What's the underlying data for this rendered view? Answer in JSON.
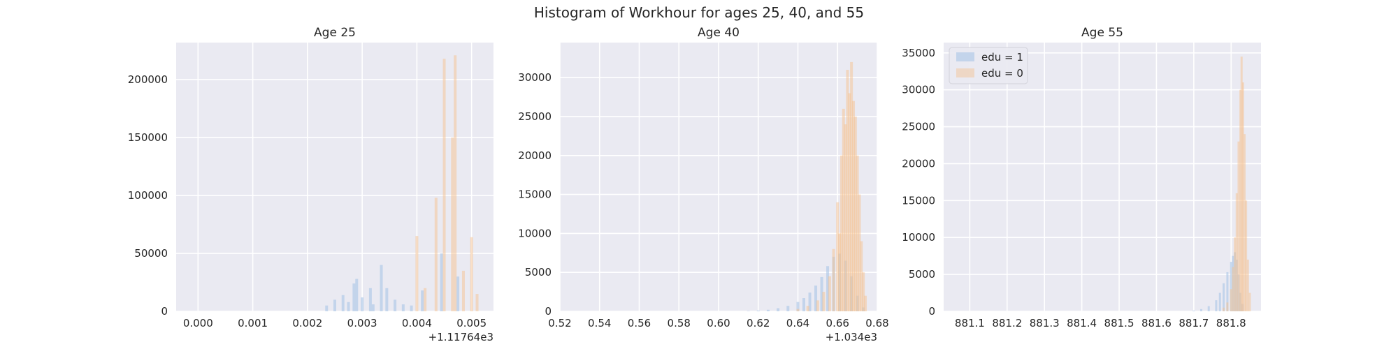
{
  "figure": {
    "suptitle": "Histogram of Workhour for ages 25, 40, and 55",
    "background": "#ffffff",
    "panel_background": "#eaeaf2",
    "grid_color": "#ffffff",
    "text_color": "#262626"
  },
  "legend": {
    "placement": "top-left of Age 55 panel",
    "items": [
      {
        "label": "edu = 1",
        "color": "#a9c4e6"
      },
      {
        "label": "edu = 0",
        "color": "#f5c28f"
      }
    ]
  },
  "chart_data": [
    {
      "type": "histogram",
      "title": "Age 25",
      "xlabel": "",
      "ylabel": "",
      "grid": true,
      "x_ticks": [
        "0.000",
        "0.001",
        "0.002",
        "0.003",
        "0.004",
        "0.005"
      ],
      "x_offset_label": "+1.11764e3",
      "xlim": [
        -0.0004,
        0.0054
      ],
      "y_ticks": [
        "0",
        "50000",
        "100000",
        "150000",
        "200000"
      ],
      "ylim": [
        0,
        232000
      ],
      "series": [
        {
          "name": "edu = 1",
          "color": "#a9c4e6",
          "bars": [
            {
              "x": 0.00235,
              "y": 5000
            },
            {
              "x": 0.0025,
              "y": 10000
            },
            {
              "x": 0.00265,
              "y": 14000
            },
            {
              "x": 0.00275,
              "y": 8000
            },
            {
              "x": 0.00285,
              "y": 24000
            },
            {
              "x": 0.0029,
              "y": 28000
            },
            {
              "x": 0.003,
              "y": 12000
            },
            {
              "x": 0.00315,
              "y": 20000
            },
            {
              "x": 0.0032,
              "y": 6000
            },
            {
              "x": 0.00335,
              "y": 40000
            },
            {
              "x": 0.00345,
              "y": 20000
            },
            {
              "x": 0.0036,
              "y": 10000
            },
            {
              "x": 0.00375,
              "y": 6000
            },
            {
              "x": 0.0039,
              "y": 5000
            },
            {
              "x": 0.0041,
              "y": 18000
            },
            {
              "x": 0.00445,
              "y": 50000
            },
            {
              "x": 0.00475,
              "y": 30000
            }
          ]
        },
        {
          "name": "edu = 0",
          "color": "#f5c28f",
          "bars": [
            {
              "x": 0.004,
              "y": 65000
            },
            {
              "x": 0.00415,
              "y": 20000
            },
            {
              "x": 0.00435,
              "y": 98000
            },
            {
              "x": 0.0045,
              "y": 218000
            },
            {
              "x": 0.00465,
              "y": 150000
            },
            {
              "x": 0.0047,
              "y": 221000
            },
            {
              "x": 0.00485,
              "y": 35000
            },
            {
              "x": 0.005,
              "y": 64000
            },
            {
              "x": 0.0051,
              "y": 15000
            }
          ]
        }
      ]
    },
    {
      "type": "histogram",
      "title": "Age 40",
      "xlabel": "",
      "ylabel": "",
      "grid": true,
      "x_ticks": [
        "0.52",
        "0.54",
        "0.56",
        "0.58",
        "0.60",
        "0.62",
        "0.64",
        "0.66",
        "0.68"
      ],
      "x_offset_label": "+1.034e3",
      "xlim": [
        0.52,
        0.68
      ],
      "y_ticks": [
        "0",
        "5000",
        "10000",
        "15000",
        "20000",
        "25000",
        "30000"
      ],
      "ylim": [
        0,
        34500
      ],
      "series": [
        {
          "name": "edu = 1",
          "color": "#a9c4e6",
          "bars": [
            {
              "x": 0.615,
              "y": 50
            },
            {
              "x": 0.62,
              "y": 100
            },
            {
              "x": 0.625,
              "y": 200
            },
            {
              "x": 0.63,
              "y": 400
            },
            {
              "x": 0.635,
              "y": 700
            },
            {
              "x": 0.64,
              "y": 1200
            },
            {
              "x": 0.643,
              "y": 1700
            },
            {
              "x": 0.646,
              "y": 2400
            },
            {
              "x": 0.649,
              "y": 3300
            },
            {
              "x": 0.652,
              "y": 4400
            },
            {
              "x": 0.655,
              "y": 5800
            },
            {
              "x": 0.658,
              "y": 7000
            },
            {
              "x": 0.661,
              "y": 7400
            },
            {
              "x": 0.664,
              "y": 6500
            },
            {
              "x": 0.667,
              "y": 4500
            },
            {
              "x": 0.67,
              "y": 2000
            },
            {
              "x": 0.673,
              "y": 500
            }
          ]
        },
        {
          "name": "edu = 0",
          "color": "#f5c28f",
          "bars": [
            {
              "x": 0.64,
              "y": 300
            },
            {
              "x": 0.645,
              "y": 700
            },
            {
              "x": 0.65,
              "y": 1400
            },
            {
              "x": 0.653,
              "y": 2500
            },
            {
              "x": 0.656,
              "y": 4500
            },
            {
              "x": 0.658,
              "y": 8000
            },
            {
              "x": 0.66,
              "y": 14000
            },
            {
              "x": 0.661,
              "y": 10000
            },
            {
              "x": 0.662,
              "y": 20000
            },
            {
              "x": 0.663,
              "y": 26000
            },
            {
              "x": 0.664,
              "y": 24000
            },
            {
              "x": 0.665,
              "y": 31000
            },
            {
              "x": 0.666,
              "y": 28000
            },
            {
              "x": 0.667,
              "y": 32000
            },
            {
              "x": 0.668,
              "y": 27000
            },
            {
              "x": 0.669,
              "y": 25000
            },
            {
              "x": 0.67,
              "y": 20000
            },
            {
              "x": 0.671,
              "y": 15000
            },
            {
              "x": 0.672,
              "y": 9000
            },
            {
              "x": 0.673,
              "y": 5000
            },
            {
              "x": 0.674,
              "y": 2000
            }
          ]
        }
      ]
    },
    {
      "type": "histogram",
      "title": "Age 55",
      "xlabel": "",
      "ylabel": "",
      "grid": true,
      "x_ticks": [
        "881.1",
        "881.2",
        "881.3",
        "881.4",
        "881.5",
        "881.6",
        "881.7",
        "881.8"
      ],
      "x_offset_label": "",
      "xlim": [
        881.03,
        881.88
      ],
      "y_ticks": [
        "0",
        "5000",
        "10000",
        "15000",
        "20000",
        "25000",
        "30000",
        "35000"
      ],
      "ylim": [
        0,
        36400
      ],
      "series": [
        {
          "name": "edu = 1",
          "color": "#a9c4e6",
          "bars": [
            {
              "x": 881.7,
              "y": 100
            },
            {
              "x": 881.72,
              "y": 300
            },
            {
              "x": 881.74,
              "y": 700
            },
            {
              "x": 881.76,
              "y": 1500
            },
            {
              "x": 881.77,
              "y": 2500
            },
            {
              "x": 881.78,
              "y": 3800
            },
            {
              "x": 881.79,
              "y": 5300
            },
            {
              "x": 881.8,
              "y": 6700
            },
            {
              "x": 881.805,
              "y": 7500
            },
            {
              "x": 881.81,
              "y": 8000
            },
            {
              "x": 881.815,
              "y": 7000
            },
            {
              "x": 881.82,
              "y": 5000
            },
            {
              "x": 881.825,
              "y": 2500
            },
            {
              "x": 881.83,
              "y": 1000
            }
          ]
        },
        {
          "name": "edu = 0",
          "color": "#f5c28f",
          "bars": [
            {
              "x": 881.78,
              "y": 500
            },
            {
              "x": 881.79,
              "y": 1200
            },
            {
              "x": 881.8,
              "y": 3000
            },
            {
              "x": 881.805,
              "y": 6000
            },
            {
              "x": 881.81,
              "y": 10000
            },
            {
              "x": 881.815,
              "y": 16000
            },
            {
              "x": 881.82,
              "y": 23000
            },
            {
              "x": 881.825,
              "y": 30000
            },
            {
              "x": 881.828,
              "y": 34500
            },
            {
              "x": 881.832,
              "y": 31000
            },
            {
              "x": 881.836,
              "y": 24000
            },
            {
              "x": 881.84,
              "y": 15000
            },
            {
              "x": 881.845,
              "y": 7000
            },
            {
              "x": 881.85,
              "y": 2500
            }
          ]
        }
      ]
    }
  ]
}
